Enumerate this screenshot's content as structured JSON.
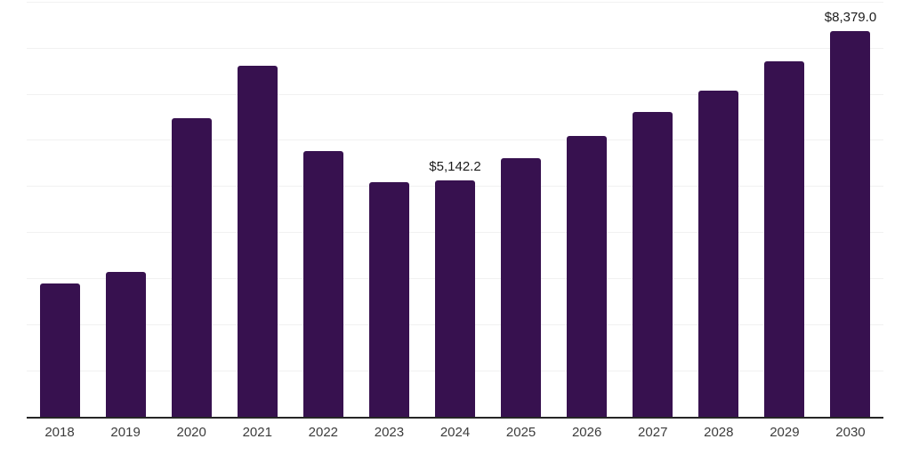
{
  "chart_data": {
    "type": "bar",
    "title": "",
    "xlabel": "",
    "ylabel": "",
    "categories": [
      "2018",
      "2019",
      "2020",
      "2021",
      "2022",
      "2023",
      "2024",
      "2025",
      "2026",
      "2027",
      "2028",
      "2029",
      "2030"
    ],
    "values": [
      2900,
      3150,
      6500,
      7630,
      5770,
      5110,
      5142.2,
      5620,
      6110,
      6630,
      7080,
      7730,
      8379.0
    ],
    "point_labels": [
      null,
      null,
      null,
      null,
      null,
      null,
      "$5,142.2",
      null,
      null,
      null,
      null,
      null,
      "$8,379.0"
    ],
    "ylim": [
      0,
      9000
    ],
    "gridline_step": 1000,
    "grid": true,
    "legend": false,
    "colors": {
      "bar": "#37114F",
      "gridline": "#f1f1f1",
      "axis": "#262626",
      "tick_label": "#3c3c3c",
      "value_label": "#1c1c1c",
      "background": "#ffffff"
    }
  }
}
